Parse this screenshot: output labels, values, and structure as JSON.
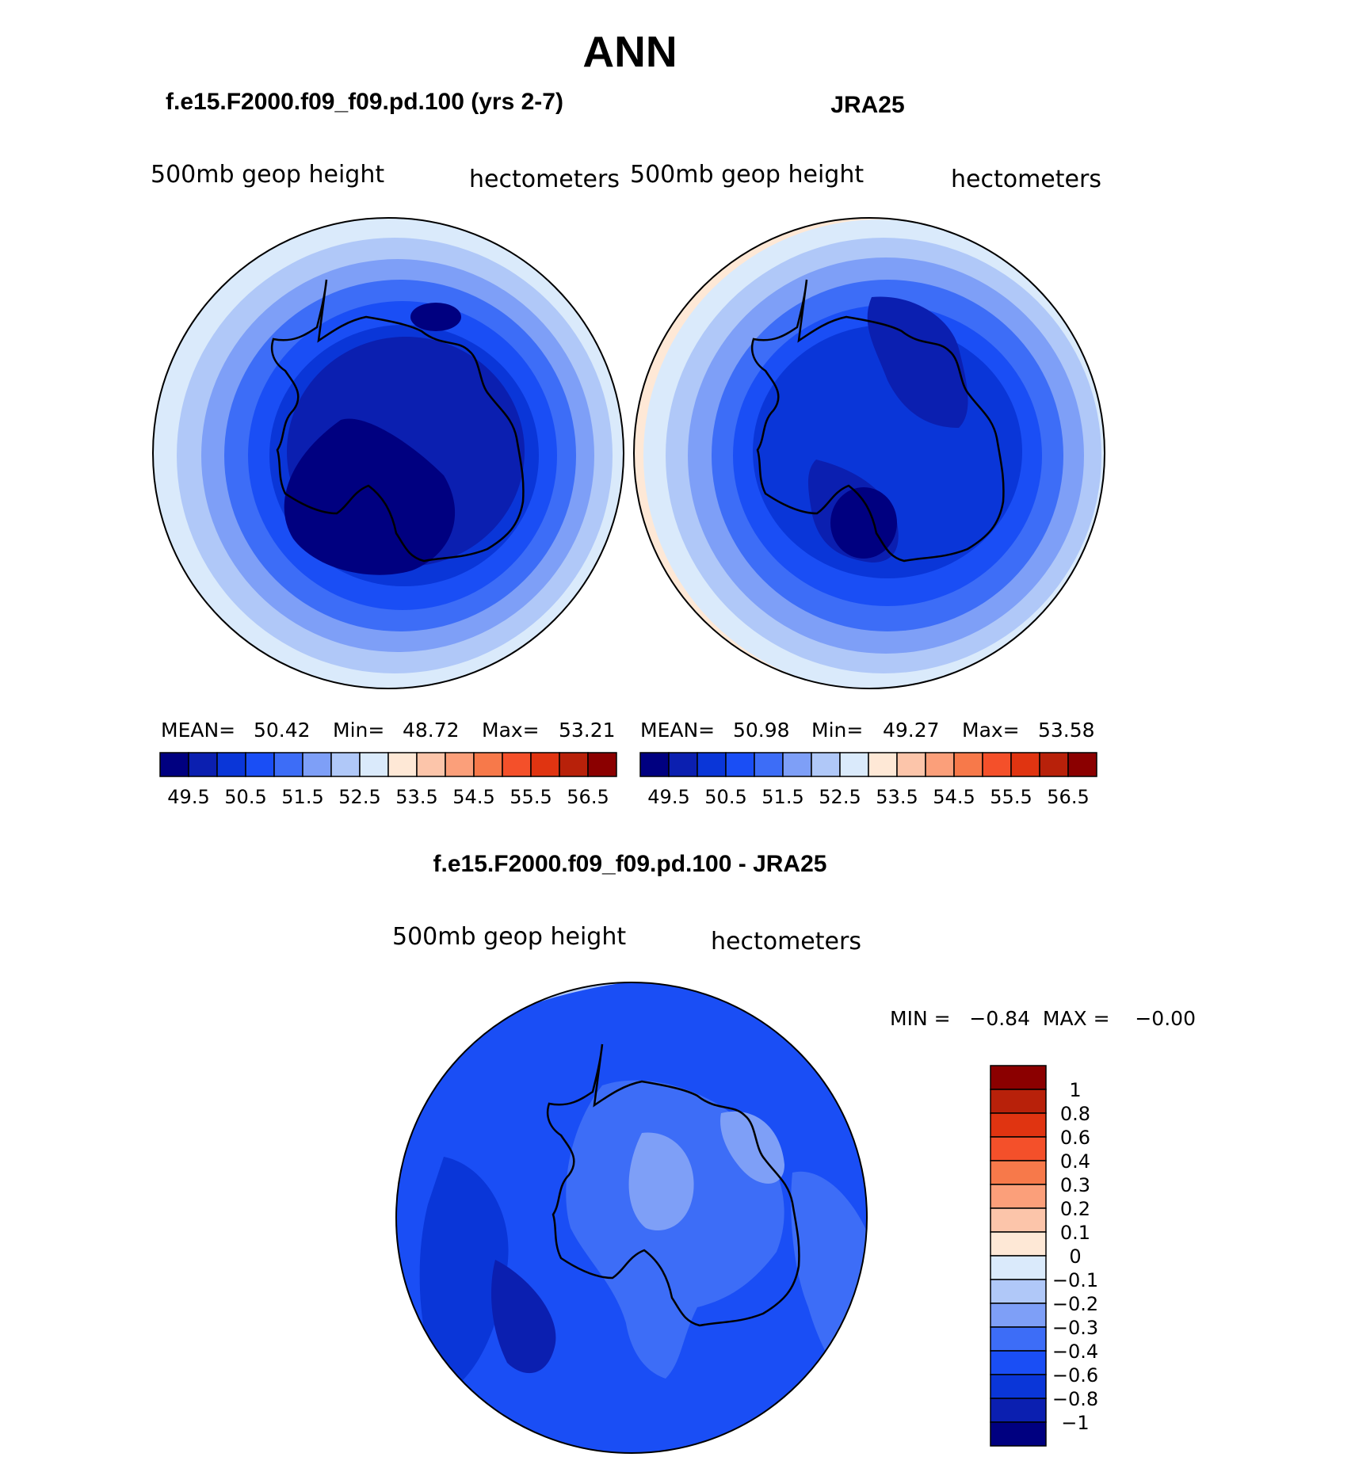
{
  "figure_title": "ANN",
  "panels": {
    "model": {
      "title": "f.e15.F2000.f09_f09.pd.100 (yrs 2-7)",
      "left_label": "500mb  geop  height",
      "right_label": "hectometers",
      "mean_label": "MEAN=",
      "mean_value": "50.42",
      "min_label": "Min=",
      "min_value": "48.72",
      "max_label": "Max=",
      "max_value": "53.21"
    },
    "obs": {
      "title": "JRA25",
      "left_label": "500mb  geop  height",
      "right_label": "hectometers",
      "mean_label": "MEAN=",
      "mean_value": "50.98",
      "min_label": "Min=",
      "min_value": "49.27",
      "max_label": "Max=",
      "max_value": "53.58"
    },
    "diff": {
      "title": "f.e15.F2000.f09_f09.pd.100 - JRA25",
      "left_label": "500mb  geop  height",
      "right_label": "hectometers",
      "minmax_text": "MIN =   −0.84  MAX =    −0.00"
    }
  },
  "chart_data": [
    {
      "type": "heatmap",
      "title": "f.e15.F2000.f09_f09.pd.100 (yrs 2-7)",
      "projection": "south polar stereographic",
      "variable": "500mb geop height",
      "units": "hectometers",
      "mean": 50.42,
      "min": 48.72,
      "max": 53.21,
      "colorbar_ticks": [
        "49.5",
        "50.5",
        "51.5",
        "52.5",
        "53.5",
        "54.5",
        "55.5",
        "56.5"
      ],
      "contour_levels": [
        49,
        49.5,
        50,
        50.5,
        51,
        51.5,
        52,
        52.5,
        53,
        53.5,
        54,
        54.5,
        55,
        55.5,
        56,
        56.5
      ],
      "colors": [
        "#000080",
        "#0b1fb0",
        "#0a36d8",
        "#1a4ef5",
        "#3d6df7",
        "#7e9ff7",
        "#b0c8f8",
        "#daeafb",
        "#fee8d6",
        "#fcc5aa",
        "#fb9f7a",
        "#f7794a",
        "#f4502a",
        "#e03411",
        "#b8210a",
        "#8b0000"
      ]
    },
    {
      "type": "heatmap",
      "title": "JRA25",
      "projection": "south polar stereographic",
      "variable": "500mb geop height",
      "units": "hectometers",
      "mean": 50.98,
      "min": 49.27,
      "max": 53.58,
      "colorbar_ticks": [
        "49.5",
        "50.5",
        "51.5",
        "52.5",
        "53.5",
        "54.5",
        "55.5",
        "56.5"
      ],
      "contour_levels": [
        49,
        49.5,
        50,
        50.5,
        51,
        51.5,
        52,
        52.5,
        53,
        53.5,
        54,
        54.5,
        55,
        55.5,
        56,
        56.5
      ],
      "colors": [
        "#000080",
        "#0b1fb0",
        "#0a36d8",
        "#1a4ef5",
        "#3d6df7",
        "#7e9ff7",
        "#b0c8f8",
        "#daeafb",
        "#fee8d6",
        "#fcc5aa",
        "#fb9f7a",
        "#f7794a",
        "#f4502a",
        "#e03411",
        "#b8210a",
        "#8b0000"
      ]
    },
    {
      "type": "heatmap",
      "title": "f.e15.F2000.f09_f09.pd.100 - JRA25",
      "projection": "south polar stereographic",
      "variable": "500mb geop height",
      "units": "hectometers",
      "min": -0.84,
      "max": -0.0,
      "colorbar_ticks": [
        "1",
        "0.8",
        "0.6",
        "0.4",
        "0.3",
        "0.2",
        "0.1",
        "0",
        "−0.1",
        "−0.2",
        "−0.3",
        "−0.4",
        "−0.6",
        "−0.8",
        "−1"
      ],
      "colors": [
        "#8b0000",
        "#b8210a",
        "#e03411",
        "#f4502a",
        "#f7794a",
        "#fb9f7a",
        "#fcc5aa",
        "#fee8d6",
        "#daeafb",
        "#b0c8f8",
        "#7e9ff7",
        "#3d6df7",
        "#1a4ef5",
        "#0a36d8",
        "#0b1fb0",
        "#000080"
      ]
    }
  ]
}
